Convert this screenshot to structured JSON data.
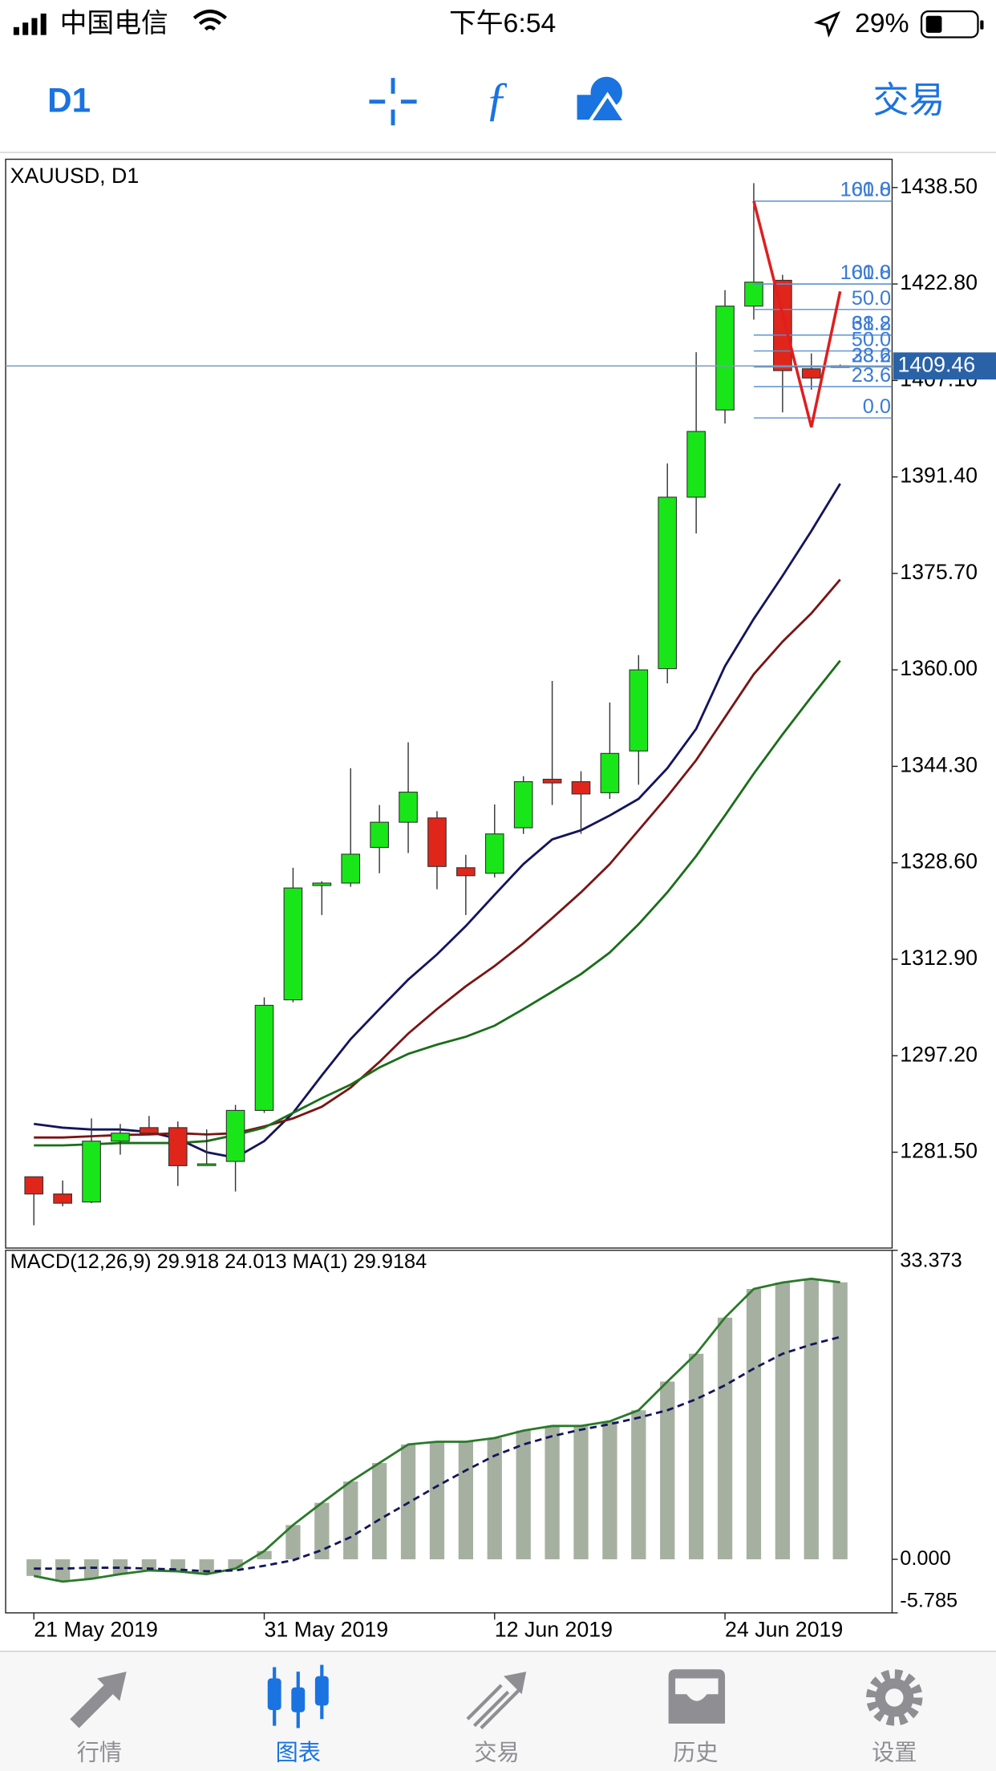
{
  "status_bar": {
    "carrier": "中国电信",
    "time": "下午6:54",
    "battery": "29%"
  },
  "toolbar": {
    "timeframe": "D1",
    "trade": "交易"
  },
  "chart_data": [
    {
      "type": "candlestick",
      "title": "XAUUSD, D1",
      "open": [
        1277.5,
        1274.7,
        1273.4,
        1283.3,
        1285.5,
        1285.5,
        1279.5,
        1280.0,
        1288.3,
        1306.3,
        1324.9,
        1325.3,
        1331.1,
        1335.2,
        1335.9,
        1327.8,
        1326.9,
        1334.3,
        1342.2,
        1341.8,
        1340.0,
        1346.8,
        1360.2,
        1388.1,
        1402.3,
        1419.2,
        1423.4,
        1409.0,
        1409.5
      ],
      "high": [
        1277.5,
        1276.9,
        1287.0,
        1286.1,
        1287.4,
        1286.5,
        1285.2,
        1289.2,
        1306.7,
        1327.8,
        1325.6,
        1344.0,
        1338.0,
        1348.2,
        1337.0,
        1329.9,
        1338.1,
        1342.7,
        1358.2,
        1343.5,
        1354.7,
        1362.4,
        1393.6,
        1411.7,
        1421.8,
        1439.2,
        1424.3,
        1411.5,
        1409.7
      ],
      "low": [
        1269.6,
        1272.7,
        1273.2,
        1281.1,
        1284.3,
        1276.0,
        1279.3,
        1275.1,
        1287.9,
        1305.9,
        1320.1,
        1324.7,
        1326.9,
        1330.2,
        1324.3,
        1320.1,
        1326.2,
        1333.3,
        1338.0,
        1333.3,
        1339.0,
        1341.3,
        1357.8,
        1382.2,
        1400.1,
        1417.0,
        1401.9,
        1405.6,
        1409.2
      ],
      "close": [
        1274.7,
        1273.2,
        1283.3,
        1284.6,
        1284.6,
        1279.3,
        1279.6,
        1288.3,
        1305.4,
        1324.5,
        1325.3,
        1330.0,
        1335.2,
        1340.1,
        1328.0,
        1326.5,
        1333.3,
        1341.8,
        1341.6,
        1339.8,
        1346.4,
        1360.0,
        1388.1,
        1398.8,
        1419.2,
        1423.1,
        1408.7,
        1407.5,
        1409.46
      ],
      "up_color": "#19e619",
      "down_color": "#e0261b",
      "series": [
        {
          "color": "#14145e",
          "values": [
            1286.1,
            1285.5,
            1285.2,
            1285.2,
            1284.8,
            1283.7,
            1281.5,
            1280.6,
            1283.3,
            1287.9,
            1294.0,
            1299.9,
            1304.8,
            1309.6,
            1313.7,
            1318.3,
            1323.4,
            1328.4,
            1332.4,
            1333.9,
            1336.3,
            1339.0,
            1344.0,
            1350.4,
            1360.6,
            1368.3,
            1375.3,
            1382.6,
            1390.3
          ]
        },
        {
          "color": "#7a1414",
          "values": [
            1283.9,
            1283.9,
            1284.1,
            1284.3,
            1284.4,
            1284.6,
            1284.4,
            1284.6,
            1285.7,
            1287.0,
            1288.9,
            1292.0,
            1296.2,
            1300.8,
            1304.8,
            1308.5,
            1311.8,
            1315.5,
            1319.6,
            1323.8,
            1328.4,
            1333.9,
            1339.4,
            1345.3,
            1352.3,
            1359.3,
            1364.6,
            1369.2,
            1374.7
          ]
        },
        {
          "color": "#1a6e1a",
          "values": [
            1282.6,
            1282.6,
            1282.8,
            1283.0,
            1283.0,
            1283.0,
            1283.3,
            1284.3,
            1285.5,
            1287.9,
            1290.3,
            1292.5,
            1295.3,
            1297.5,
            1299.0,
            1300.3,
            1302.1,
            1304.8,
            1307.6,
            1310.5,
            1314.0,
            1318.6,
            1323.8,
            1329.7,
            1336.3,
            1343.1,
            1349.5,
            1355.6,
            1361.5
          ]
        }
      ],
      "ylim": [
        1265.9,
        1443.1
      ],
      "yticks": [
        {
          "value": 1438.5,
          "label": "1438.50"
        },
        {
          "value": 1422.8,
          "label": "1422.80"
        },
        {
          "value": 1407.1,
          "label": "1407.10"
        },
        {
          "value": 1391.4,
          "label": "1391.40"
        },
        {
          "value": 1375.7,
          "label": "1375.70"
        },
        {
          "value": 1360,
          "label": "1360.00"
        },
        {
          "value": 1344.3,
          "label": "1344.30"
        },
        {
          "value": 1328.6,
          "label": "1328.60"
        },
        {
          "value": 1312.9,
          "label": "1312.90"
        },
        {
          "value": 1297.2,
          "label": "1297.20"
        },
        {
          "value": 1281.5,
          "label": "1281.50"
        }
      ],
      "last_price": 1409.46,
      "zigzag": {
        "color": "#e01e1e",
        "x": [
          25,
          27,
          28
        ],
        "y": [
          1436.3,
          1399.5,
          1421.6
        ]
      },
      "fibonacci": [
        {
          "levels": [
            {
              "label": "100.0",
              "price": 1436.3
            },
            {
              "label": "61.8",
              "price": 1422.8
            },
            {
              "label": "50.0",
              "price": 1418.65
            },
            {
              "label": "38.2",
              "price": 1414.5
            },
            {
              "label": "23.6",
              "price": 1409.3
            },
            {
              "label": "0.0",
              "price": 1401.0
            }
          ]
        },
        {
          "levels": [
            {
              "label": "161.8",
              "price": 1436.3
            },
            {
              "label": "100.0",
              "price": 1422.8
            },
            {
              "label": "61.8",
              "price": 1414.5
            },
            {
              "label": "50.0",
              "price": 1411.9
            },
            {
              "label": "38.2",
              "price": 1409.3
            },
            {
              "label": "23.6",
              "price": 1406.1
            }
          ]
        }
      ]
    },
    {
      "type": "macd",
      "title": "MACD(12,26,9) 29.918 24.013 MA(1) 29.9184",
      "categories": [
        "21 May 2019",
        null,
        null,
        null,
        null,
        null,
        null,
        null,
        "31 May 2019",
        null,
        null,
        null,
        null,
        null,
        null,
        null,
        "12 Jun 2019",
        null,
        null,
        null,
        null,
        null,
        null,
        null,
        "24 Jun 2019",
        null,
        null,
        null,
        null
      ],
      "series": [
        {
          "type": "bar",
          "color": "#a6b0a0",
          "values": [
            -1.8,
            -2.4,
            -2.1,
            -1.6,
            -1.2,
            -1.3,
            -1.6,
            -1.0,
            0.9,
            3.7,
            6.1,
            8.4,
            10.4,
            12.4,
            12.7,
            12.7,
            13.1,
            13.9,
            14.4,
            14.4,
            14.9,
            16.1,
            19.2,
            22.2,
            26.1,
            29.2,
            29.9,
            30.3,
            29.918
          ]
        },
        {
          "type": "line",
          "color": "#2a7a2a",
          "values": [
            -1.8,
            -2.4,
            -2.1,
            -1.6,
            -1.2,
            -1.3,
            -1.6,
            -1.0,
            0.9,
            3.7,
            6.1,
            8.4,
            10.4,
            12.4,
            12.7,
            12.7,
            13.1,
            13.9,
            14.4,
            14.4,
            14.9,
            16.1,
            19.2,
            22.2,
            26.1,
            29.2,
            29.9,
            30.3,
            29.9184
          ]
        },
        {
          "type": "line",
          "color": "#14145e",
          "dashed": true,
          "values": [
            -1.0,
            -1.0,
            -0.9,
            -0.9,
            -1.0,
            -1.1,
            -1.3,
            -1.2,
            -0.7,
            -0.1,
            1.0,
            2.4,
            4.3,
            6.1,
            7.9,
            9.6,
            11.2,
            12.4,
            13.3,
            14.0,
            14.6,
            15.3,
            16.1,
            17.3,
            18.8,
            20.6,
            22.2,
            23.2,
            24.013
          ]
        }
      ],
      "ylim": [
        -5.785,
        33.373
      ],
      "yticks": [
        33.373,
        {
          "value": 0,
          "label": "0.000"
        },
        -5.785
      ]
    }
  ],
  "tab_bar": {
    "tabs": [
      "行情",
      "图表",
      "交易",
      "历史",
      "设置"
    ],
    "active": 1
  }
}
